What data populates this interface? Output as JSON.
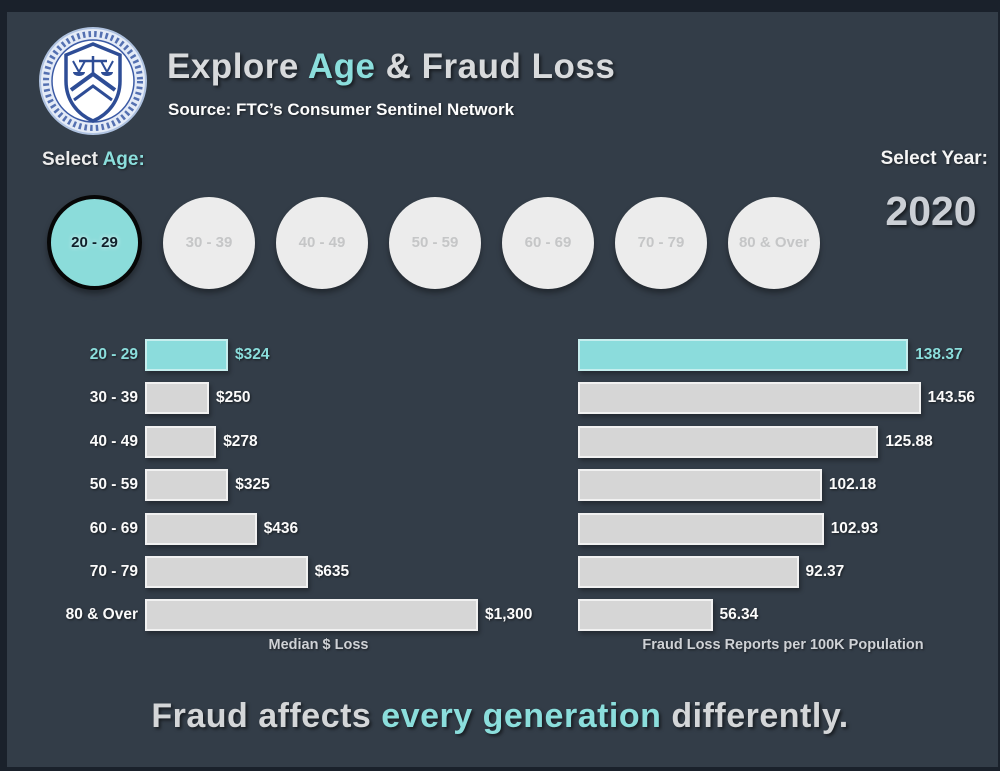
{
  "header": {
    "logo": "ftc-seal",
    "title_pre": "Explore ",
    "title_highlight": "Age",
    "title_post": " & Fraud Loss",
    "subtitle": "Source: FTC’s Consumer Sentinel Network"
  },
  "controls": {
    "select_age_pre": "Select ",
    "select_age_highlight": "Age:",
    "select_year_label": "Select Year:",
    "year_value": "2020"
  },
  "age_buttons": [
    {
      "label": "20 - 29",
      "selected": true
    },
    {
      "label": "30 - 39",
      "selected": false
    },
    {
      "label": "40 - 49",
      "selected": false
    },
    {
      "label": "50 - 59",
      "selected": false
    },
    {
      "label": "60 - 69",
      "selected": false
    },
    {
      "label": "70 - 79",
      "selected": false
    },
    {
      "label": "80 & Over",
      "selected": false
    }
  ],
  "chart_data": [
    {
      "type": "bar",
      "orientation": "horizontal",
      "title": "Median $ Loss",
      "categories": [
        "20 - 29",
        "30 - 39",
        "40 - 49",
        "50 - 59",
        "60 - 69",
        "70 - 79",
        "80 & Over"
      ],
      "values": [
        324,
        250,
        278,
        325,
        436,
        635,
        1300
      ],
      "value_labels": [
        "$324",
        "$250",
        "$278",
        "$325",
        "$436",
        "$635",
        "$1,300"
      ],
      "highlight_index": 0,
      "xlim": [
        0,
        1300
      ],
      "grid": false,
      "legend": false
    },
    {
      "type": "bar",
      "orientation": "horizontal",
      "title": "Fraud Loss Reports per 100K Population",
      "categories": [
        "20 - 29",
        "30 - 39",
        "40 - 49",
        "50 - 59",
        "60 - 69",
        "70 - 79",
        "80 & Over"
      ],
      "values": [
        138.37,
        143.56,
        125.88,
        102.18,
        102.93,
        92.37,
        56.34
      ],
      "value_labels": [
        "138.37",
        "143.56",
        "125.88",
        "102.18",
        "102.93",
        "92.37",
        "56.34"
      ],
      "highlight_index": 0,
      "xlim": [
        0,
        150
      ],
      "grid": false,
      "legend": false
    }
  ],
  "footer": {
    "pre": "Fraud affects ",
    "highlight": "every generation",
    "post": " differently."
  },
  "colors": {
    "background": "#333D48",
    "frame": "#1A212B",
    "accent": "#8BDCDC",
    "accent_text": "#8BDEDC",
    "bar_gray": "#D6D6D6",
    "bar_border": "#F1F1F1",
    "circle_bg": "#ECECEC",
    "circle_text": "#C5C6C7",
    "selected_circle_border": "#070707",
    "title_gray": "#D8DADC",
    "year_text": "#CBCFD5",
    "white_text": "#FBFBFB"
  }
}
